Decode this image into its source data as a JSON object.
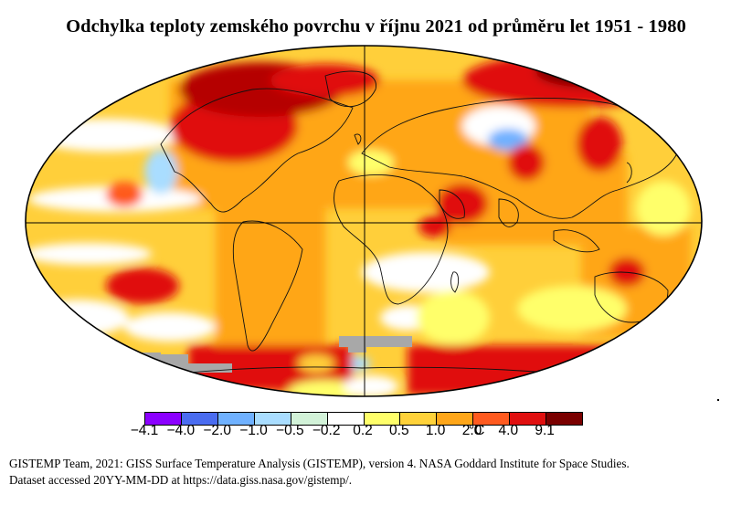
{
  "title": "Odchylka teploty zemského povrchu v říjnu 2021 od průměru let 1951 - 1980",
  "legend": {
    "labels": [
      "−4.1",
      "−4.0",
      "−2.0",
      "−1.0",
      "−0.5",
      "−0.2",
      "0.2",
      "0.5",
      "1.0",
      "2.0",
      "4.0",
      "9.1"
    ],
    "unit": "°C",
    "colors": [
      "#8b00ff",
      "#4a6cf0",
      "#6fb1ff",
      "#a9ddff",
      "#d2f2d8",
      "#ffffff",
      "#ffff6a",
      "#ffd23a",
      "#ffa619",
      "#ff5a1f",
      "#e01010",
      "#7a0000"
    ]
  },
  "map": {
    "missing_data_color": "#a8a8a8",
    "palette": {
      "background_ocean": "#ffcf3a",
      "warm": "#ffa619",
      "hot": "#e01010",
      "very_hot": "#7a0000",
      "cool": "#a9ddff",
      "cold": "#6fb1ff",
      "neutral": "#ffffff",
      "slight_warm": "#ffff6a"
    }
  },
  "footer": {
    "line1": "GISTEMP Team, 2021: GISS Surface Temperature Analysis (GISTEMP), version 4. NASA Goddard Institute for Space Studies.",
    "line2": "Dataset accessed 20YY-MM-DD at https://data.giss.nasa.gov/gistemp/."
  }
}
